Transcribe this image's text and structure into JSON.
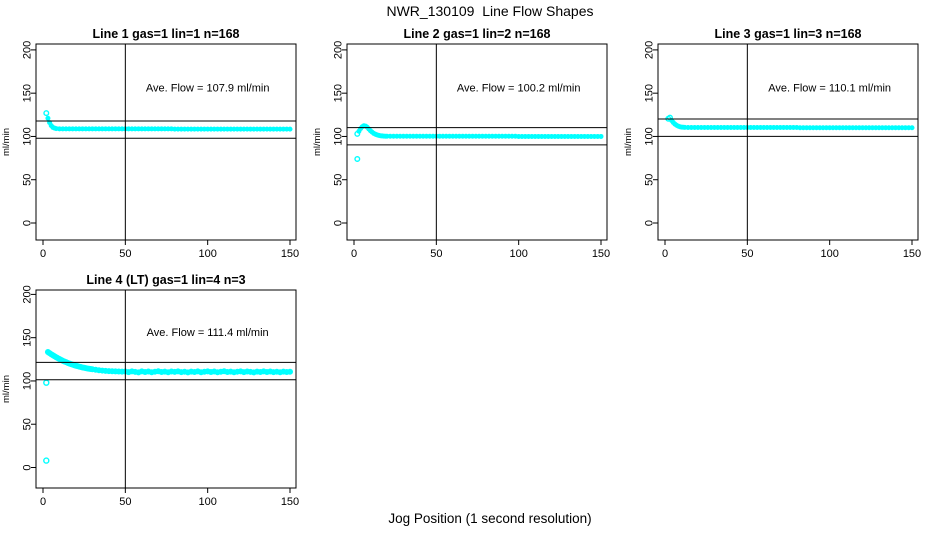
{
  "figure": {
    "title": "NWR_130109  Line Flow Shapes",
    "xlabel": "Jog Position (1 second resolution)",
    "point_color": "#00FFFF",
    "line_color": "#000000",
    "background": "#FFFFFF"
  },
  "chart_data": [
    {
      "type": "scatter",
      "title": "Line 1 gas=1 lin=1 n=168",
      "ave_flow": 107.9,
      "ave_flow_text": "Ave. Flow =  107.9  ml/min",
      "ylabel": "ml/min",
      "xticks": [
        0,
        50,
        100,
        150
      ],
      "yticks": [
        0,
        50,
        100,
        150,
        200
      ],
      "xlim": [
        0,
        150
      ],
      "ylim": [
        0,
        200
      ],
      "vline": 50,
      "hlines": [
        117.9,
        97.9
      ],
      "grid": false,
      "open_points": [
        [
          2,
          127
        ]
      ],
      "points": [
        [
          3,
          121
        ],
        [
          4,
          116
        ],
        [
          5,
          112.5
        ],
        [
          6,
          110.5
        ],
        [
          7,
          109.6
        ],
        [
          8,
          109.1
        ],
        [
          10,
          108.8
        ],
        [
          12,
          108.8
        ],
        [
          14,
          108.8
        ],
        [
          16,
          108.8
        ],
        [
          18,
          108.8
        ],
        [
          20,
          108.8
        ],
        [
          22,
          108.8
        ],
        [
          24,
          108.8
        ],
        [
          26,
          108.8
        ],
        [
          28,
          108.8
        ],
        [
          30,
          108.8
        ],
        [
          32,
          108.8
        ],
        [
          34,
          108.8
        ],
        [
          36,
          108.8
        ],
        [
          38,
          108.8
        ],
        [
          40,
          108.8
        ],
        [
          42,
          108.8
        ],
        [
          44,
          108.8
        ],
        [
          46,
          108.8
        ],
        [
          48,
          108.8
        ],
        [
          50,
          108.8
        ],
        [
          52,
          108.8
        ],
        [
          54,
          108.8
        ],
        [
          56,
          108.8
        ],
        [
          58,
          108.8
        ],
        [
          60,
          108.8
        ],
        [
          62,
          108.8
        ],
        [
          64,
          108.8
        ],
        [
          66,
          108.8
        ],
        [
          68,
          108.8
        ],
        [
          70,
          108.8
        ],
        [
          72,
          108.8
        ],
        [
          74,
          108.8
        ],
        [
          76,
          108.8
        ],
        [
          78,
          108.8
        ],
        [
          80,
          108.5
        ],
        [
          82,
          108.5
        ],
        [
          84,
          108.5
        ],
        [
          86,
          108.5
        ],
        [
          88,
          108.5
        ],
        [
          90,
          108.5
        ],
        [
          92,
          108.5
        ],
        [
          94,
          108.5
        ],
        [
          96,
          108.5
        ],
        [
          98,
          108.5
        ],
        [
          100,
          108.5
        ],
        [
          102,
          108.5
        ],
        [
          104,
          108.5
        ],
        [
          106,
          108.5
        ],
        [
          108,
          108.5
        ],
        [
          110,
          108.5
        ],
        [
          112,
          108.5
        ],
        [
          114,
          108.5
        ],
        [
          116,
          108.5
        ],
        [
          118,
          108.5
        ],
        [
          120,
          108.5
        ],
        [
          122,
          108.5
        ],
        [
          124,
          108.5
        ],
        [
          126,
          108.5
        ],
        [
          128,
          108.5
        ],
        [
          130,
          108.5
        ],
        [
          132,
          108.5
        ],
        [
          134,
          108.5
        ],
        [
          136,
          108.5
        ],
        [
          138,
          108.5
        ],
        [
          140,
          108.5
        ],
        [
          142,
          108.5
        ],
        [
          144,
          108.5
        ],
        [
          146,
          108.5
        ],
        [
          148,
          108.5
        ],
        [
          150,
          108.5
        ]
      ]
    },
    {
      "type": "scatter",
      "title": "Line 2 gas=1 lin=2 n=168",
      "ave_flow": 100.2,
      "ave_flow_text": "Ave. Flow =  100.2  ml/min",
      "ylabel": "ml/min",
      "xticks": [
        0,
        50,
        100,
        150
      ],
      "yticks": [
        0,
        50,
        100,
        150,
        200
      ],
      "xlim": [
        0,
        150
      ],
      "ylim": [
        0,
        200
      ],
      "vline": 50,
      "hlines": [
        110.2,
        90.2
      ],
      "grid": false,
      "open_points": [
        [
          2,
          103
        ],
        [
          2,
          74
        ]
      ],
      "points": [
        [
          3,
          106
        ],
        [
          4,
          109
        ],
        [
          5,
          111.2
        ],
        [
          6,
          112.3
        ],
        [
          7,
          112
        ],
        [
          8,
          110.6
        ],
        [
          9,
          108.6
        ],
        [
          10,
          106.6
        ],
        [
          11,
          105
        ],
        [
          12,
          103.6
        ],
        [
          13,
          102.6
        ],
        [
          14,
          101.8
        ],
        [
          15,
          101.2
        ],
        [
          16,
          100.8
        ],
        [
          17,
          100.6
        ],
        [
          18,
          100.4
        ],
        [
          19,
          100.3
        ],
        [
          20,
          100.3
        ],
        [
          22,
          100.2
        ],
        [
          24,
          100.2
        ],
        [
          26,
          100.2
        ],
        [
          28,
          100.2
        ],
        [
          30,
          100.2
        ],
        [
          32,
          100.2
        ],
        [
          34,
          100.2
        ],
        [
          36,
          100.2
        ],
        [
          38,
          100.2
        ],
        [
          40,
          100.2
        ],
        [
          42,
          100.2
        ],
        [
          44,
          100.2
        ],
        [
          46,
          100.2
        ],
        [
          48,
          100.2
        ],
        [
          50,
          100.2
        ],
        [
          52,
          100.2
        ],
        [
          54,
          100.2
        ],
        [
          56,
          100.2
        ],
        [
          58,
          100.2
        ],
        [
          60,
          100.2
        ],
        [
          62,
          100.2
        ],
        [
          64,
          100.2
        ],
        [
          66,
          100.2
        ],
        [
          68,
          100.2
        ],
        [
          70,
          100.2
        ],
        [
          72,
          100.2
        ],
        [
          74,
          100.2
        ],
        [
          76,
          100.2
        ],
        [
          78,
          100.2
        ],
        [
          80,
          100.2
        ],
        [
          82,
          100.2
        ],
        [
          84,
          100.2
        ],
        [
          86,
          100.2
        ],
        [
          88,
          100.2
        ],
        [
          90,
          100.2
        ],
        [
          92,
          100.2
        ],
        [
          94,
          100.2
        ],
        [
          96,
          100.2
        ],
        [
          98,
          100.2
        ],
        [
          100,
          100
        ],
        [
          102,
          100
        ],
        [
          104,
          100
        ],
        [
          106,
          100
        ],
        [
          108,
          100
        ],
        [
          110,
          100
        ],
        [
          112,
          100
        ],
        [
          114,
          100
        ],
        [
          116,
          100
        ],
        [
          118,
          100
        ],
        [
          120,
          100
        ],
        [
          122,
          100
        ],
        [
          124,
          100
        ],
        [
          126,
          100
        ],
        [
          128,
          100
        ],
        [
          130,
          100
        ],
        [
          132,
          100
        ],
        [
          134,
          100
        ],
        [
          136,
          100
        ],
        [
          138,
          100
        ],
        [
          140,
          100
        ],
        [
          142,
          100
        ],
        [
          144,
          100
        ],
        [
          146,
          100
        ],
        [
          148,
          100
        ],
        [
          150,
          100
        ]
      ]
    },
    {
      "type": "scatter",
      "title": "Line 3 gas=1 lin=3 n=168",
      "ave_flow": 110.1,
      "ave_flow_text": "Ave. Flow =  110.1  ml/min",
      "ylabel": "ml/min",
      "xticks": [
        0,
        50,
        100,
        150
      ],
      "yticks": [
        0,
        50,
        100,
        150,
        200
      ],
      "xlim": [
        0,
        150
      ],
      "ylim": [
        0,
        200
      ],
      "vline": 50,
      "hlines": [
        120.1,
        100.1
      ],
      "grid": false,
      "open_points": [
        [
          2,
          120.5
        ],
        [
          3,
          121.8
        ]
      ],
      "points": [
        [
          4,
          118.5
        ],
        [
          5,
          116.2
        ],
        [
          6,
          114.3
        ],
        [
          7,
          112.9
        ],
        [
          8,
          111.9
        ],
        [
          9,
          111.2
        ],
        [
          10,
          110.8
        ],
        [
          11,
          110.6
        ],
        [
          12,
          110.5
        ],
        [
          14,
          110.3
        ],
        [
          16,
          110.3
        ],
        [
          18,
          110.3
        ],
        [
          20,
          110.3
        ],
        [
          22,
          110.3
        ],
        [
          24,
          110.3
        ],
        [
          26,
          110.3
        ],
        [
          28,
          110.3
        ],
        [
          30,
          110.3
        ],
        [
          32,
          110.3
        ],
        [
          34,
          110.3
        ],
        [
          36,
          110.3
        ],
        [
          38,
          110.3
        ],
        [
          40,
          110.3
        ],
        [
          42,
          110.3
        ],
        [
          44,
          110.3
        ],
        [
          46,
          110.3
        ],
        [
          48,
          110.3
        ],
        [
          50,
          110.3
        ],
        [
          52,
          110.3
        ],
        [
          54,
          110.3
        ],
        [
          56,
          110.3
        ],
        [
          58,
          110.3
        ],
        [
          60,
          110.3
        ],
        [
          62,
          110.3
        ],
        [
          64,
          110.3
        ],
        [
          66,
          110.3
        ],
        [
          68,
          110.3
        ],
        [
          70,
          110.3
        ],
        [
          72,
          110.3
        ],
        [
          74,
          110.3
        ],
        [
          76,
          110.3
        ],
        [
          78,
          110.3
        ],
        [
          80,
          110.3
        ],
        [
          82,
          110.1
        ],
        [
          84,
          110.1
        ],
        [
          86,
          110.1
        ],
        [
          88,
          110.1
        ],
        [
          90,
          110.1
        ],
        [
          92,
          110.1
        ],
        [
          94,
          110.1
        ],
        [
          96,
          110.1
        ],
        [
          98,
          110.1
        ],
        [
          100,
          110.1
        ],
        [
          102,
          110.1
        ],
        [
          104,
          110.1
        ],
        [
          106,
          110.1
        ],
        [
          108,
          110.1
        ],
        [
          110,
          110.1
        ],
        [
          112,
          110.1
        ],
        [
          114,
          110.1
        ],
        [
          116,
          110.1
        ],
        [
          118,
          110.1
        ],
        [
          120,
          110.1
        ],
        [
          122,
          110.1
        ],
        [
          124,
          110.1
        ],
        [
          126,
          110.1
        ],
        [
          128,
          110.1
        ],
        [
          130,
          110.1
        ],
        [
          132,
          110.1
        ],
        [
          134,
          110.1
        ],
        [
          136,
          110.1
        ],
        [
          138,
          110.1
        ],
        [
          140,
          110.1
        ],
        [
          142,
          110.1
        ],
        [
          144,
          110.1
        ],
        [
          146,
          110.1
        ],
        [
          148,
          110.1
        ],
        [
          150,
          110.1
        ]
      ]
    },
    {
      "type": "scatter",
      "title": "Line 4 (LT) gas=1 lin=4 n=3",
      "ave_flow": 111.4,
      "ave_flow_text": "Ave. Flow =  111.4  ml/min",
      "ylabel": "ml/min",
      "xticks": [
        0,
        50,
        100,
        150
      ],
      "yticks": [
        0,
        50,
        100,
        150,
        200
      ],
      "xlim": [
        0,
        150
      ],
      "ylim": [
        0,
        200
      ],
      "vline": 50,
      "hlines": [
        121.4,
        101.4
      ],
      "grid": false,
      "open_points": [
        [
          2,
          98
        ],
        [
          2,
          8
        ]
      ],
      "points": [
        [
          3,
          133.5
        ],
        [
          4,
          132.2
        ],
        [
          5,
          130.9
        ],
        [
          6,
          129.7
        ],
        [
          7,
          128.5
        ],
        [
          8,
          127.4
        ],
        [
          9,
          126.3
        ],
        [
          10,
          125.3
        ],
        [
          11,
          124.3
        ],
        [
          12,
          123.4
        ],
        [
          13,
          122.5
        ],
        [
          14,
          121.7
        ],
        [
          15,
          120.9
        ],
        [
          16,
          120.2
        ],
        [
          17,
          119.5
        ],
        [
          18,
          118.8
        ],
        [
          19,
          118.2
        ],
        [
          20,
          117.6
        ],
        [
          21,
          117.1
        ],
        [
          22,
          116.6
        ],
        [
          23,
          116.1
        ],
        [
          24,
          115.6
        ],
        [
          25,
          115.2
        ],
        [
          26,
          114.8
        ],
        [
          27,
          114.4
        ],
        [
          28,
          114.1
        ],
        [
          29,
          113.8
        ],
        [
          30,
          113.5
        ],
        [
          32,
          112.9
        ],
        [
          34,
          112.4
        ],
        [
          36,
          112
        ],
        [
          38,
          111.7
        ],
        [
          40,
          111.4
        ],
        [
          42,
          111.2
        ],
        [
          44,
          111
        ],
        [
          46,
          110.9
        ],
        [
          48,
          110.8
        ],
        [
          50,
          110.9
        ],
        [
          52,
          110.2
        ],
        [
          54,
          111.1
        ],
        [
          56,
          110.5
        ],
        [
          58,
          109.9
        ],
        [
          60,
          111
        ],
        [
          62,
          110.4
        ],
        [
          64,
          110.9
        ],
        [
          66,
          110.1
        ],
        [
          68,
          110.7
        ],
        [
          70,
          111.2
        ],
        [
          72,
          110.3
        ],
        [
          74,
          110.8
        ],
        [
          76,
          110
        ],
        [
          78,
          110.9
        ],
        [
          80,
          110.5
        ],
        [
          82,
          111.1
        ],
        [
          84,
          110.2
        ],
        [
          86,
          110.7
        ],
        [
          88,
          109.9
        ],
        [
          90,
          110.8
        ],
        [
          92,
          110.4
        ],
        [
          94,
          111
        ],
        [
          96,
          110.1
        ],
        [
          98,
          110.6
        ],
        [
          100,
          111.1
        ],
        [
          102,
          110.3
        ],
        [
          104,
          110.9
        ],
        [
          106,
          110
        ],
        [
          108,
          110.6
        ],
        [
          110,
          111.2
        ],
        [
          112,
          110.4
        ],
        [
          114,
          110.8
        ],
        [
          116,
          110.1
        ],
        [
          118,
          110.7
        ],
        [
          120,
          111
        ],
        [
          122,
          110.2
        ],
        [
          124,
          110.9
        ],
        [
          126,
          110.5
        ],
        [
          128,
          109.9
        ],
        [
          130,
          110.8
        ],
        [
          132,
          110.3
        ],
        [
          134,
          111.1
        ],
        [
          136,
          110.4
        ],
        [
          138,
          110.9
        ],
        [
          140,
          110.2
        ],
        [
          142,
          110.7
        ],
        [
          144,
          110
        ],
        [
          146,
          110.8
        ],
        [
          148,
          110.4
        ],
        [
          150,
          110.6
        ]
      ]
    }
  ]
}
